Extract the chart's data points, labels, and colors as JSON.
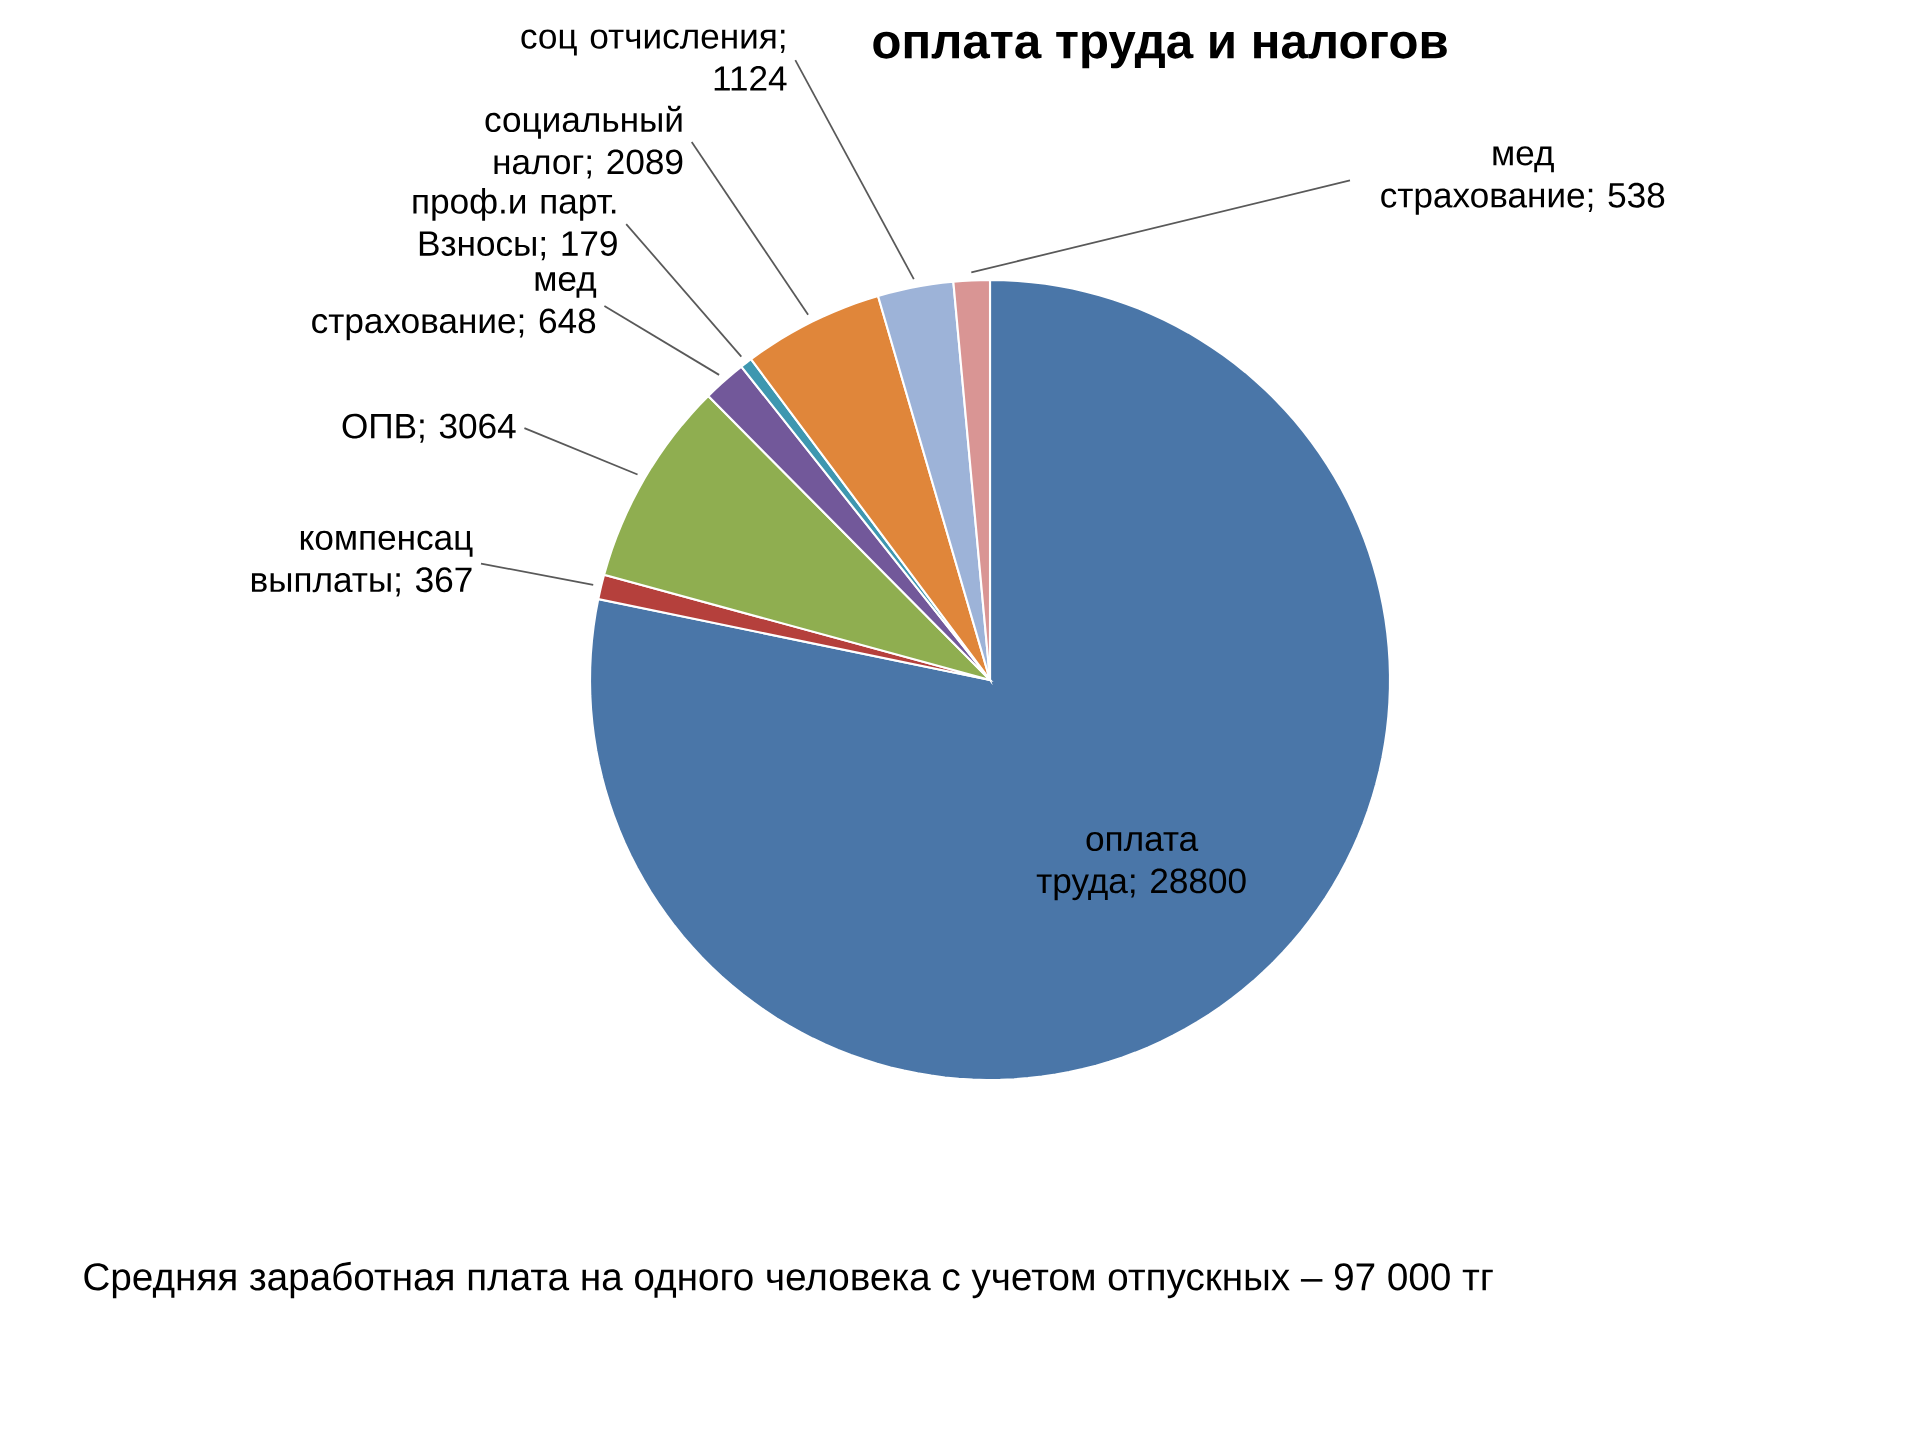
{
  "chart_data": {
    "type": "pie",
    "title": "оплата труда и налогов",
    "categories": [
      "оплата труда",
      "компенсац выплаты",
      "ОПВ",
      "мед страхование",
      "проф.и парт. Взносы",
      "социальный налог",
      "соц отчисления",
      "мед страхование"
    ],
    "values": [
      28800,
      367,
      3064,
      648,
      179,
      2089,
      1124,
      538
    ],
    "value_labels": [
      "; 28800",
      "; 367",
      "; 3064",
      "; 648",
      "; 179",
      "; 2089",
      "; 1124",
      "; 538"
    ],
    "colors": [
      "#4a76a8",
      "#b5403c",
      "#8fae50",
      "#72589a",
      "#3e97b0",
      "#e0863a",
      "#9db3d8",
      "#d99594"
    ],
    "annotations": [
      "Средняя заработная плата на одного человека с учетом отпускных – 97 000 тг"
    ]
  }
}
